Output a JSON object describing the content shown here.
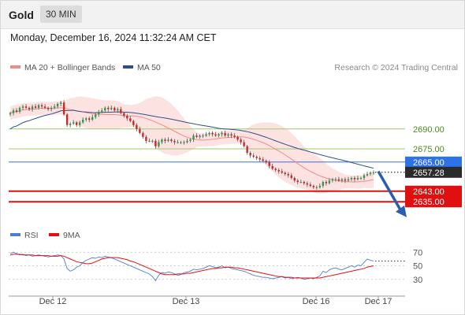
{
  "header": {
    "instrument": "Gold",
    "timeframe": "30 MIN"
  },
  "datetime": "Monday, December 16, 2024 11:32:24 AM CET",
  "legend": {
    "ma20": {
      "label": "MA 20 + Bollinger Bands",
      "color": "#f08a8a"
    },
    "ma50": {
      "label": "MA 50",
      "color": "#2c4f8c"
    },
    "rsi": {
      "label": "RSI",
      "color": "#4f7bd6"
    },
    "ma9": {
      "label": "9MA",
      "color": "#e01010"
    }
  },
  "copyright": "Research © 2024 Trading Central",
  "colors": {
    "bull": "#2e9b4a",
    "bear": "#c42c2c",
    "wick": "#555555",
    "band_fill": "#fde2e2",
    "resistance": "#9ccb6a",
    "pivot": "#2e72e8",
    "support": "#e01010",
    "last": "#2b2b2b",
    "arrow": "#2a5db0"
  },
  "chart_data": [
    {
      "type": "candlestick",
      "x_labels": [
        "Dec 12",
        "Dec 13",
        "Dec 16",
        "Dec 17"
      ],
      "ylim": [
        2628,
        2722
      ],
      "levels": [
        {
          "value": 2690.0,
          "label": "2690.00",
          "kind": "resistance"
        },
        {
          "value": 2675.0,
          "label": "2675.00",
          "kind": "resistance"
        },
        {
          "value": 2665.0,
          "label": "2665.00",
          "kind": "pivot"
        },
        {
          "value": 2643.0,
          "label": "2643.00",
          "kind": "support"
        },
        {
          "value": 2635.0,
          "label": "2635.00",
          "kind": "support"
        }
      ],
      "last_price": {
        "value": 2657.28,
        "label": "2657.28"
      },
      "forecast_arrow": {
        "from": 2658,
        "to": 2640
      },
      "close": [
        2702,
        2704,
        2703,
        2706,
        2707,
        2706,
        2705,
        2707,
        2706,
        2708,
        2707,
        2706,
        2705,
        2706,
        2707,
        2709,
        2710,
        2701,
        2693,
        2694,
        2695,
        2693,
        2695,
        2697,
        2698,
        2697,
        2699,
        2701,
        2703,
        2704,
        2706,
        2705,
        2706,
        2704,
        2705,
        2702,
        2700,
        2698,
        2696,
        2693,
        2690,
        2687,
        2684,
        2681,
        2681,
        2681,
        2677,
        2680,
        2682,
        2681,
        2682,
        2681,
        2680,
        2680,
        2680,
        2680,
        2681,
        2682,
        2685,
        2684,
        2685,
        2685,
        2686,
        2687,
        2686,
        2685,
        2686,
        2687,
        2685,
        2686,
        2685,
        2684,
        2682,
        2680,
        2677,
        2672,
        2670,
        2669,
        2668,
        2667,
        2666,
        2665,
        2662,
        2660,
        2659,
        2658,
        2657,
        2656,
        2655,
        2653,
        2651,
        2650,
        2650,
        2649,
        2648,
        2647,
        2646,
        2646,
        2647,
        2650,
        2649,
        2651,
        2652,
        2652,
        2651,
        2652,
        2651,
        2652,
        2653,
        2652,
        2653,
        2653,
        2655,
        2656,
        2657,
        2657.28
      ]
    },
    {
      "type": "line",
      "ylim": [
        10,
        90
      ],
      "yticks": [
        70,
        50,
        30
      ],
      "rsi": [
        68,
        70,
        68,
        66,
        67,
        65,
        66,
        64,
        65,
        66,
        65,
        64,
        63,
        64,
        65,
        66,
        65,
        60,
        46,
        42,
        44,
        48,
        50,
        55,
        58,
        60,
        62,
        61,
        63,
        62,
        64,
        63,
        62,
        60,
        58,
        56,
        54,
        52,
        50,
        48,
        46,
        44,
        42,
        40,
        38,
        34,
        28,
        36,
        40,
        39,
        41,
        40,
        38,
        36,
        37,
        40,
        41,
        42,
        45,
        44,
        45,
        46,
        48,
        50,
        49,
        47,
        48,
        50,
        47,
        48,
        46,
        45,
        44,
        43,
        42,
        40,
        38,
        36,
        35,
        34,
        33,
        33,
        32,
        31,
        32,
        33,
        34,
        32,
        33,
        31,
        32,
        33,
        32,
        30,
        31,
        32,
        31,
        33,
        35,
        42,
        40,
        44,
        46,
        47,
        45,
        44,
        46,
        48,
        50,
        48,
        51,
        50,
        55,
        60,
        58,
        57
      ],
      "ma9": [
        66,
        67,
        67,
        67,
        66,
        66,
        66,
        66,
        65,
        65,
        65,
        65,
        65,
        64,
        64,
        64,
        65,
        64,
        62,
        60,
        58,
        56,
        55,
        54,
        53,
        53,
        54,
        56,
        58,
        60,
        61,
        62,
        62,
        62,
        62,
        61,
        60,
        59,
        57,
        56,
        54,
        52,
        50,
        48,
        46,
        44,
        42,
        40,
        38,
        37,
        37,
        37,
        37,
        38,
        38,
        38,
        39,
        39,
        40,
        41,
        42,
        43,
        44,
        45,
        46,
        46,
        47,
        47,
        48,
        48,
        48,
        47,
        47,
        46,
        45,
        44,
        43,
        42,
        41,
        40,
        39,
        38,
        37,
        36,
        35,
        34,
        34,
        33,
        33,
        33,
        32,
        32,
        32,
        32,
        32,
        32,
        32,
        32,
        32,
        33,
        34,
        35,
        36,
        37,
        38,
        39,
        40,
        41,
        42,
        43,
        44,
        45,
        46,
        48,
        49,
        50
      ]
    }
  ]
}
